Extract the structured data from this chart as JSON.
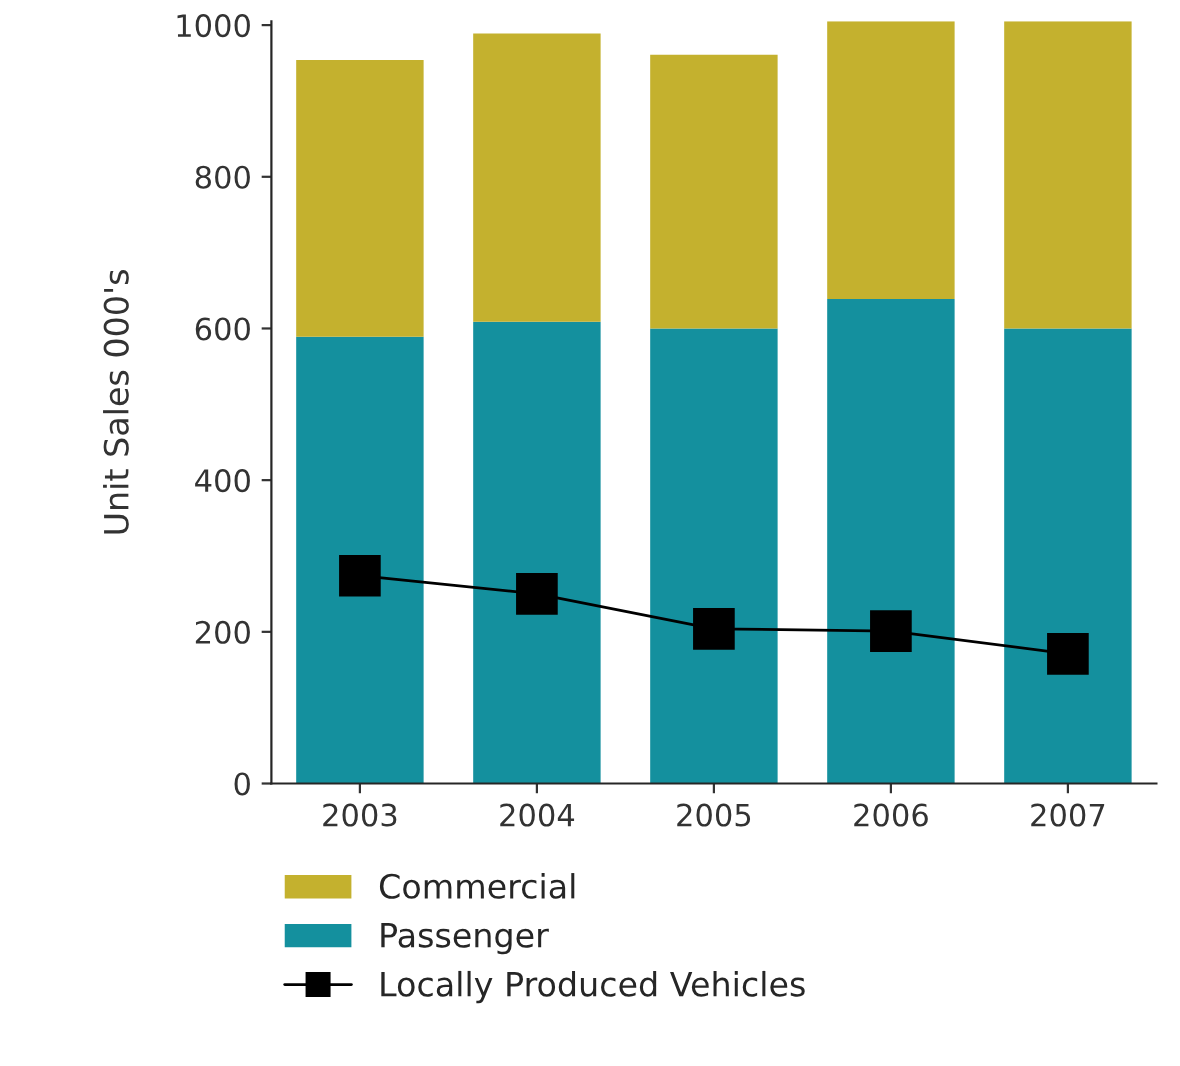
{
  "chart_data": {
    "type": "bar",
    "stacked": true,
    "ylabel": "Unit Sales 000's",
    "categories": [
      "2003",
      "2004",
      "2005",
      "2006",
      "2007"
    ],
    "series": [
      {
        "name": "Passenger",
        "color": "#14909e",
        "values": [
          589,
          609,
          600,
          639,
          600
        ]
      },
      {
        "name": "Commercial",
        "color": "#c4b12e",
        "values": [
          365,
          380,
          361,
          366,
          405
        ]
      },
      {
        "name": "Locally Produced Vehicles",
        "type": "line",
        "color": "#000000",
        "marker": "square",
        "values": [
          274,
          250,
          204,
          201,
          171
        ]
      }
    ],
    "ylim": [
      0,
      1005
    ],
    "yticks": [
      0,
      200,
      400,
      600,
      800,
      1000
    ],
    "grid": false,
    "legend": "bottom"
  }
}
